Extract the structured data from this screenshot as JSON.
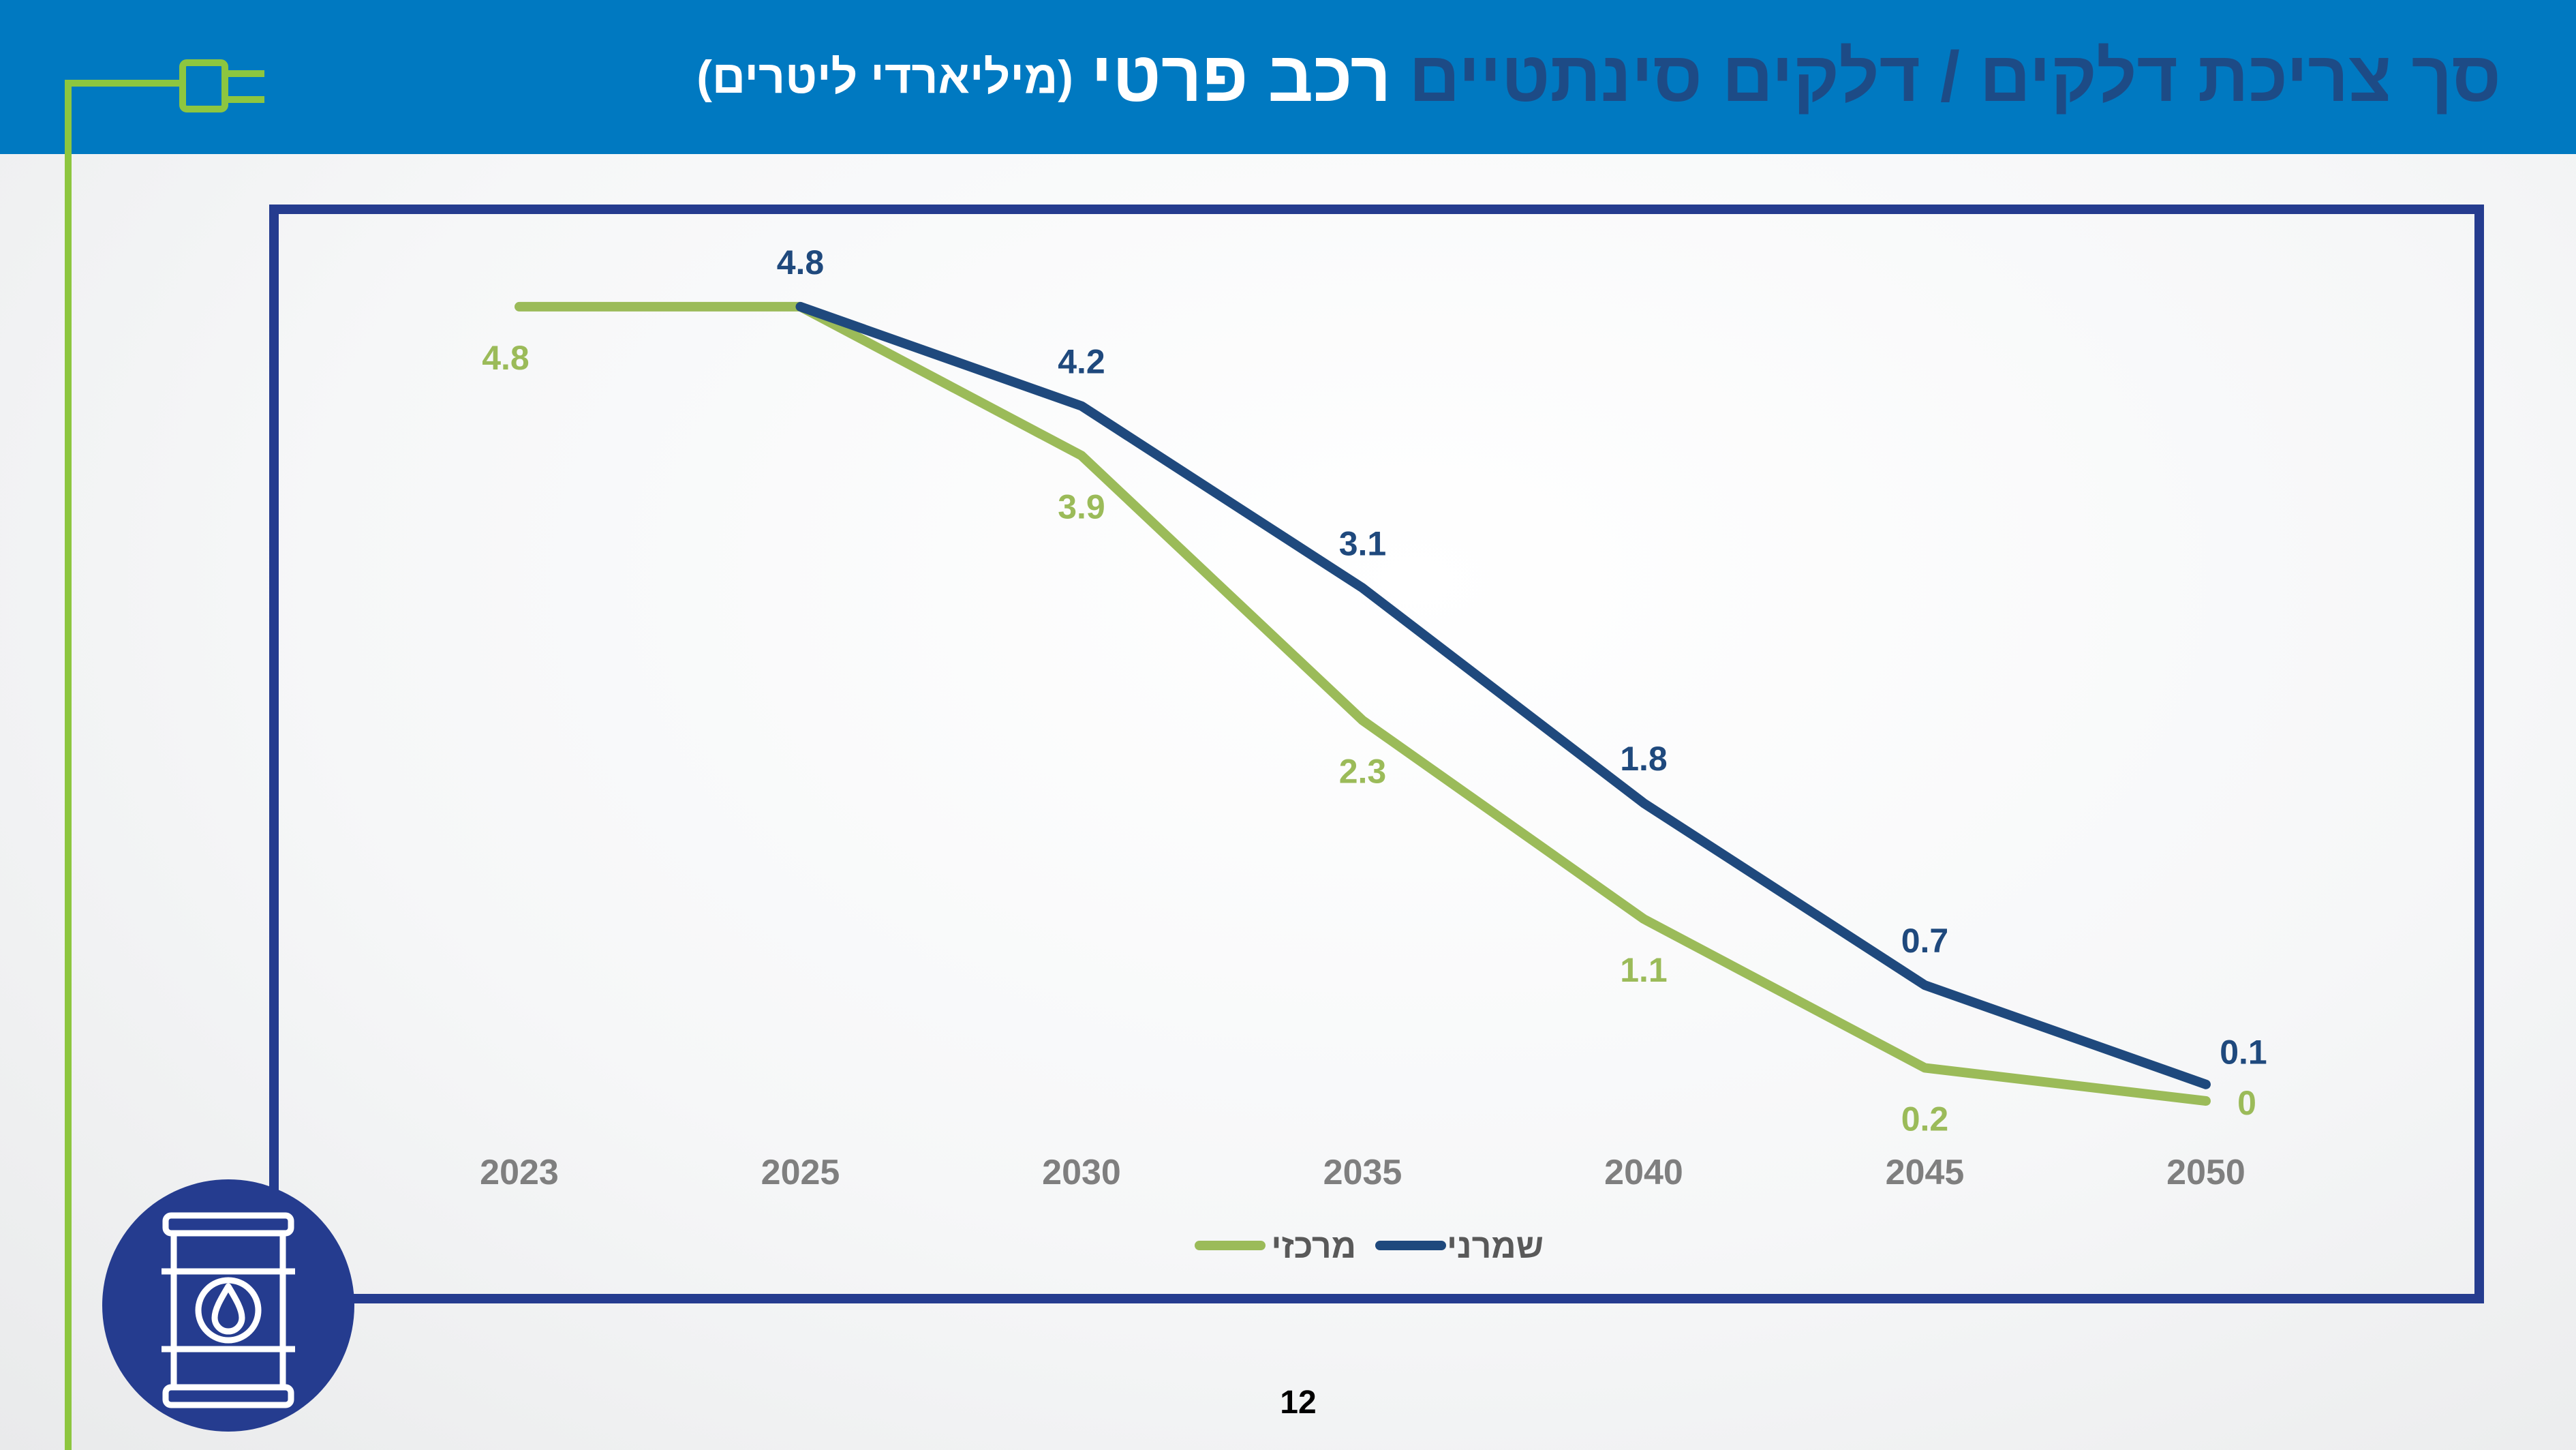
{
  "header": {
    "title_main": "סך צריכת דלקים / דלקים סינתטיים",
    "title_bold": "רכב פרטי",
    "title_unit": "(מיליארדי ליטרים)"
  },
  "page_number": "12",
  "colors": {
    "header_bg": "#0079c1",
    "frame": "#253c8f",
    "series_markazi": "#9bbb59",
    "series_shamrani": "#1f497d",
    "accent_green": "#8dc63f"
  },
  "icons": {
    "plug": "plug-icon",
    "badge": "oil-barrel-icon"
  },
  "chart_data": {
    "type": "line",
    "title": "",
    "xlabel": "",
    "ylabel": "",
    "categories": [
      "2023",
      "2025",
      "2030",
      "2035",
      "2040",
      "2045",
      "2050"
    ],
    "ylim": [
      0,
      5.5
    ],
    "grid": false,
    "legend": "bottom-center",
    "series": [
      {
        "name": "מרכזי",
        "values": [
          4.8,
          4.8,
          3.9,
          2.3,
          1.1,
          0.2,
          0.0
        ],
        "labels": [
          "4.8",
          "",
          "3.9",
          "2.3",
          "1.1",
          "0.2",
          "0"
        ]
      },
      {
        "name": "שמרני",
        "values": [
          null,
          4.8,
          4.2,
          3.1,
          1.8,
          0.7,
          0.1
        ],
        "labels": [
          "",
          "4.8",
          "4.2",
          "3.1",
          "1.8",
          "0.7",
          "0.1"
        ]
      }
    ]
  }
}
